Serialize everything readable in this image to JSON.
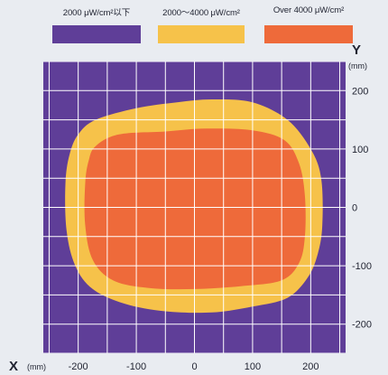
{
  "legend": {
    "items": [
      {
        "label": "2000 μW/cm²以下",
        "color": "#5f3e98"
      },
      {
        "label": "2000～4000 μW/cm²",
        "color": "#f6c24a"
      },
      {
        "label": "Over 4000 μW/cm²",
        "color": "#ee6a3a"
      }
    ]
  },
  "axes": {
    "x_letter": "X",
    "x_unit": "(mm)",
    "y_letter": "Y",
    "y_unit": "(mm)"
  },
  "chart_data": {
    "type": "heatmap",
    "title": "",
    "xlabel": "X (mm)",
    "ylabel": "Y (mm)",
    "xlim": [
      -260,
      260
    ],
    "ylim": [
      -250,
      250
    ],
    "x_ticks": [
      -200,
      -100,
      0,
      100,
      200
    ],
    "y_ticks": [
      200,
      100,
      0,
      -100,
      -200
    ],
    "x_tick_labels": [
      "-200",
      "-100",
      "0",
      "100",
      "200"
    ],
    "y_tick_labels": [
      "200",
      "100",
      "0",
      "-100",
      "-200"
    ],
    "grid": true,
    "grid_step": 50,
    "legend_position": "top",
    "background_region": {
      "name": "2000 μW/cm²以下",
      "color": "#5f3e98"
    },
    "regions": [
      {
        "name": "2000～4000 μW/cm²",
        "color": "#f6c24a",
        "outline": [
          [
            -200,
            125
          ],
          [
            -170,
            150
          ],
          [
            -100,
            170
          ],
          [
            -30,
            180
          ],
          [
            30,
            185
          ],
          [
            100,
            180
          ],
          [
            160,
            150
          ],
          [
            200,
            100
          ],
          [
            218,
            50
          ],
          [
            220,
            -30
          ],
          [
            212,
            -80
          ],
          [
            195,
            -120
          ],
          [
            160,
            -155
          ],
          [
            100,
            -170
          ],
          [
            30,
            -180
          ],
          [
            -50,
            -178
          ],
          [
            -120,
            -165
          ],
          [
            -175,
            -140
          ],
          [
            -205,
            -100
          ],
          [
            -220,
            -40
          ],
          [
            -222,
            40
          ],
          [
            -215,
            90
          ]
        ]
      },
      {
        "name": "Over 4000 μW/cm²",
        "color": "#ee6a3a",
        "outline": [
          [
            -170,
            105
          ],
          [
            -130,
            125
          ],
          [
            -50,
            130
          ],
          [
            20,
            135
          ],
          [
            100,
            132
          ],
          [
            155,
            115
          ],
          [
            180,
            75
          ],
          [
            190,
            20
          ],
          [
            190,
            -50
          ],
          [
            180,
            -95
          ],
          [
            150,
            -125
          ],
          [
            80,
            -135
          ],
          [
            0,
            -140
          ],
          [
            -80,
            -138
          ],
          [
            -140,
            -125
          ],
          [
            -175,
            -90
          ],
          [
            -188,
            -30
          ],
          [
            -188,
            40
          ],
          [
            -182,
            80
          ]
        ]
      }
    ]
  }
}
